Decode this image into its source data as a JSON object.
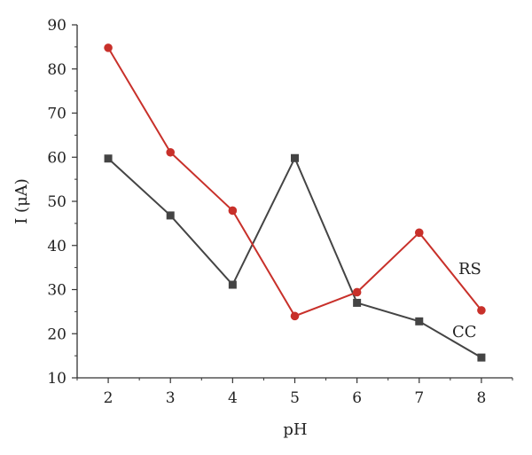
{
  "chart_data": {
    "type": "line",
    "title": "",
    "xlabel": "pH",
    "ylabel": "I (μA)",
    "x": [
      2,
      3,
      4,
      5,
      6,
      7,
      8
    ],
    "xticks": [
      "2",
      "3",
      "4",
      "5",
      "6",
      "7",
      "8"
    ],
    "yticks": [
      "10",
      "20",
      "30",
      "40",
      "50",
      "60",
      "70",
      "80",
      "90"
    ],
    "xlim": [
      1.5,
      8.5
    ],
    "ylim": [
      10,
      90
    ],
    "grid": false,
    "legend": "none (series labeled inline)",
    "series": [
      {
        "name": "CC",
        "color": "#444444",
        "marker": "square",
        "values": [
          59.7,
          46.8,
          31.1,
          59.8,
          27.0,
          22.8,
          14.6
        ]
      },
      {
        "name": "RS",
        "color": "#c8302a",
        "marker": "circle",
        "values": [
          84.8,
          61.1,
          47.9,
          24.0,
          29.4,
          42.9,
          25.3
        ]
      }
    ]
  }
}
